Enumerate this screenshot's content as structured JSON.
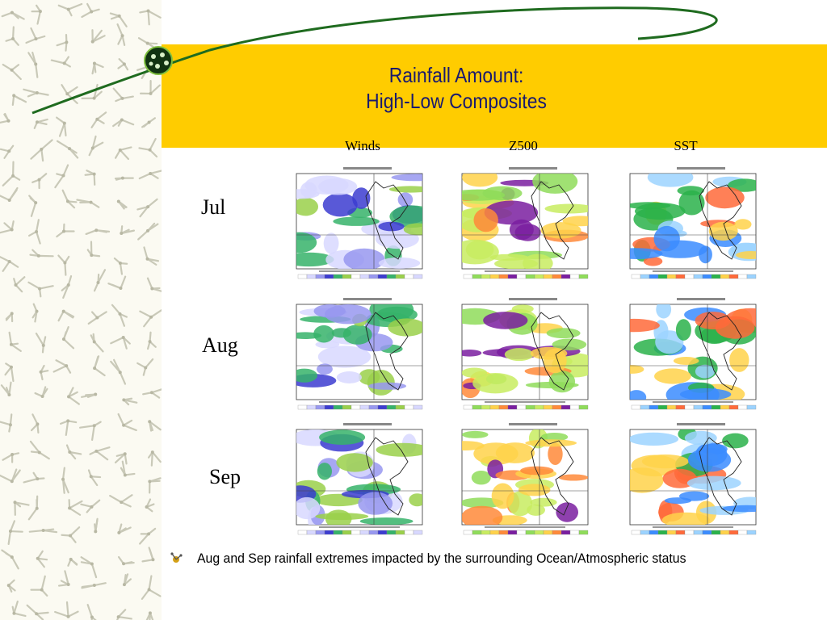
{
  "slide": {
    "title_line1": "Rainfall Amount:",
    "title_line2": "High-Low Composites",
    "columns": [
      "Winds",
      "Z500",
      "SST"
    ],
    "rows": [
      "Jul",
      "Aug",
      "Sep"
    ],
    "bullet": "Aug and Sep rainfall extremes impacted by the surrounding Ocean/Atmospheric status"
  },
  "colors": {
    "title_band": "#ffcc00",
    "title_text": "#1a1a6e",
    "swoosh": "#1f6b1f"
  },
  "panels": [
    {
      "row": "Jul",
      "col": "Winds",
      "icon": "wind-composite-map"
    },
    {
      "row": "Jul",
      "col": "Z500",
      "icon": "geopotential-composite-map"
    },
    {
      "row": "Jul",
      "col": "SST",
      "icon": "sst-composite-map"
    },
    {
      "row": "Aug",
      "col": "Winds",
      "icon": "wind-composite-map"
    },
    {
      "row": "Aug",
      "col": "Z500",
      "icon": "geopotential-composite-map"
    },
    {
      "row": "Aug",
      "col": "SST",
      "icon": "sst-composite-map"
    },
    {
      "row": "Sep",
      "col": "Winds",
      "icon": "wind-composite-map"
    },
    {
      "row": "Sep",
      "col": "Z500",
      "icon": "geopotential-composite-map"
    },
    {
      "row": "Sep",
      "col": "SST",
      "icon": "sst-composite-map"
    }
  ]
}
